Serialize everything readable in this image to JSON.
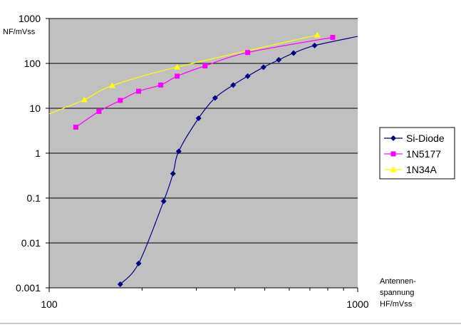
{
  "chart_data": {
    "type": "line",
    "title": "",
    "ylabel": "NF/mVss",
    "xlabel_lines": [
      "Antennen-",
      "spannung",
      "HF/mVss"
    ],
    "x_scale": "log",
    "y_scale": "log",
    "xlim": [
      100,
      1000
    ],
    "ylim": [
      0.001,
      1000
    ],
    "x_tick_labels": [
      "100",
      "1000"
    ],
    "y_tick_labels": [
      "0.001",
      "0.01",
      "0.1",
      "1",
      "10",
      "100",
      "1000"
    ],
    "grid": true,
    "legend_position": "right",
    "series": [
      {
        "name": "Si-Diode",
        "color": "#000080",
        "marker": "diamond",
        "points": [
          [
            170,
            0.0012
          ],
          [
            195,
            0.0035
          ],
          [
            235,
            0.085
          ],
          [
            252,
            0.35
          ],
          [
            263,
            1.1
          ],
          [
            305,
            6
          ],
          [
            345,
            17
          ],
          [
            395,
            33
          ],
          [
            440,
            52
          ],
          [
            495,
            82
          ],
          [
            555,
            120
          ],
          [
            620,
            170
          ],
          [
            725,
            250
          ],
          [
            1000,
            400
          ]
        ],
        "marker_count": 13
      },
      {
        "name": "1N5177",
        "color": "#ff00ff",
        "marker": "square",
        "points": [
          [
            122,
            3.8
          ],
          [
            145,
            8.5
          ],
          [
            170,
            15
          ],
          [
            195,
            24
          ],
          [
            230,
            33
          ],
          [
            260,
            52
          ],
          [
            320,
            88
          ],
          [
            440,
            175
          ],
          [
            830,
            380
          ]
        ],
        "marker_count": 9
      },
      {
        "name": "1N34A",
        "color": "#ffff00",
        "marker": "triangle",
        "points": [
          [
            100,
            7.5
          ],
          [
            130,
            15.5
          ],
          [
            160,
            32
          ],
          [
            260,
            83
          ],
          [
            740,
            430
          ]
        ],
        "marker_count": 4
      }
    ]
  }
}
